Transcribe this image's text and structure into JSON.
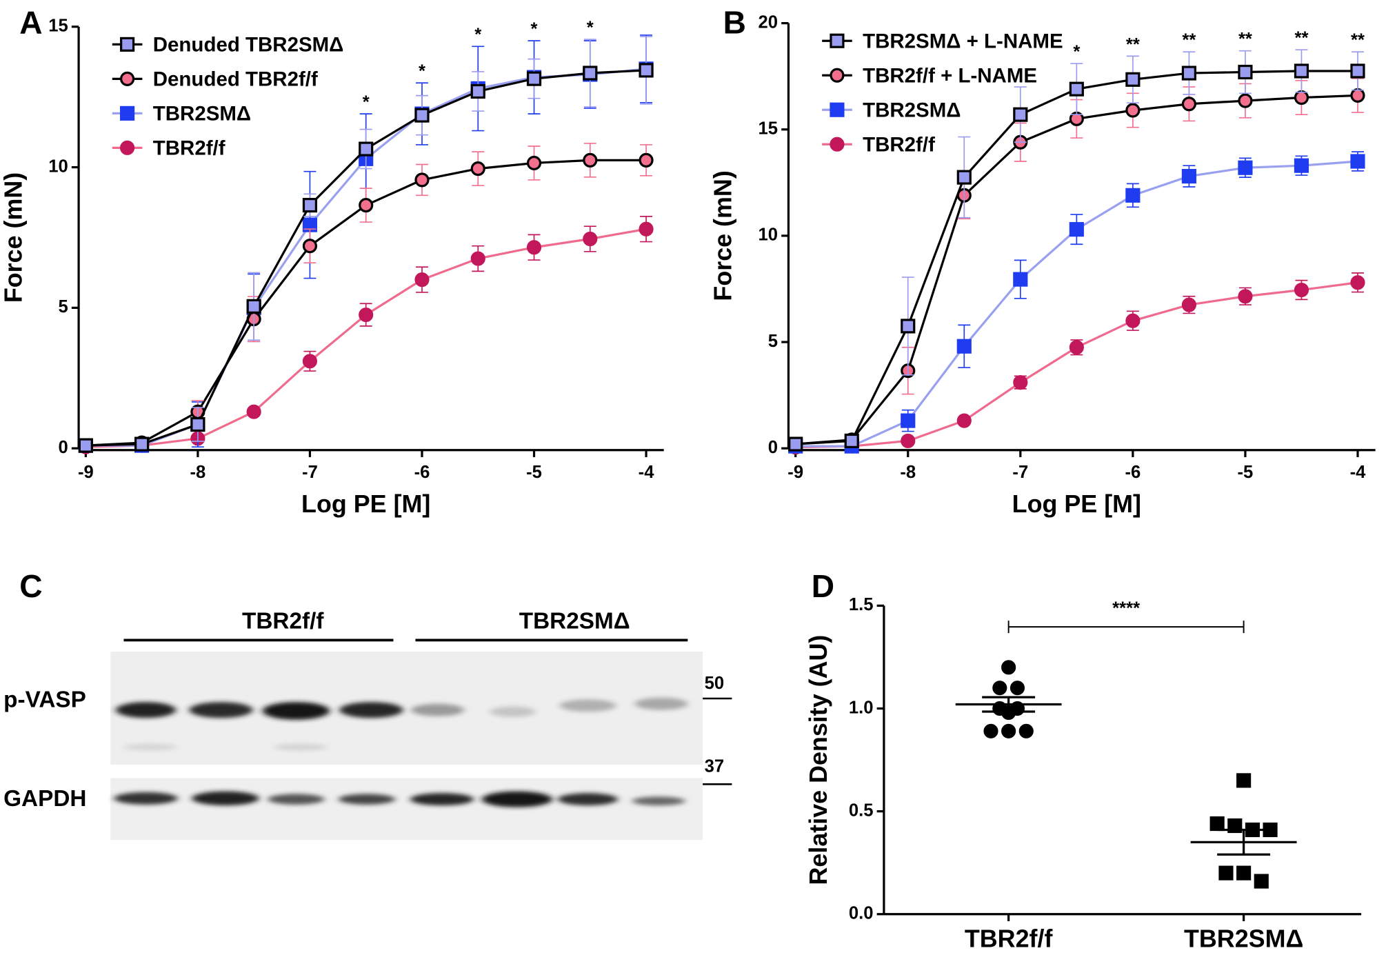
{
  "chart_data": [
    {
      "type": "line",
      "panel_label": "A",
      "xlabel": "Log PE [M]",
      "ylabel": "Force (mN)",
      "x": [
        -9,
        -8.5,
        -8,
        -7.5,
        -7,
        -6.5,
        -6,
        -5.5,
        -5,
        -4.5,
        -4
      ],
      "xlim": [
        -9,
        -4
      ],
      "xticks": [
        -9,
        -8,
        -7,
        -6,
        -5,
        -4
      ],
      "ylim": [
        0,
        15
      ],
      "yticks": [
        0,
        5,
        10,
        15
      ],
      "legend": "upper left",
      "series": [
        {
          "name": "Denuded TBR2SMΔ",
          "marker": "square",
          "color": "#9a9cf0",
          "line_color": "#000000",
          "edge_color": "#000000",
          "values": [
            0.1,
            0.15,
            0.85,
            5.05,
            8.65,
            10.65,
            11.85,
            12.7,
            13.15,
            13.35,
            13.45
          ],
          "errors": [
            0.05,
            0.1,
            0.6,
            1.2,
            0.4,
            0.7,
            0.7,
            0.7,
            0.7,
            1.2,
            1.2
          ]
        },
        {
          "name": "Denuded TBR2f/f",
          "marker": "circle",
          "color": "#f2708e",
          "line_color": "#000000",
          "edge_color": "#000000",
          "values": [
            0.1,
            0.2,
            1.3,
            4.6,
            7.2,
            8.65,
            9.55,
            9.95,
            10.15,
            10.25,
            10.25
          ],
          "errors": [
            0.05,
            0.1,
            0.4,
            0.8,
            0.6,
            0.6,
            0.55,
            0.6,
            0.6,
            0.6,
            0.55
          ]
        },
        {
          "name": "TBR2SMΔ",
          "marker": "square",
          "color": "#1f3cf0",
          "line_color": "#9aa0f0",
          "edge_color": "#1f3cf0",
          "values": [
            0.1,
            0.1,
            0.85,
            5.0,
            7.95,
            10.3,
            11.9,
            12.8,
            13.2,
            13.3,
            13.5
          ],
          "errors": [
            0.05,
            0.05,
            0.8,
            1.2,
            1.9,
            1.6,
            1.1,
            1.5,
            1.3,
            1.2,
            1.2
          ]
        },
        {
          "name": "TBR2f/f",
          "marker": "circle",
          "color": "#c2185b",
          "line_color": "#f06a8e",
          "edge_color": "#c2185b",
          "values": [
            0.05,
            0.1,
            0.35,
            1.3,
            3.1,
            4.75,
            6.0,
            6.75,
            7.15,
            7.45,
            7.8
          ],
          "errors": [
            0.02,
            0.05,
            0.1,
            0.1,
            0.35,
            0.4,
            0.45,
            0.45,
            0.45,
            0.45,
            0.45
          ]
        }
      ],
      "annotations": [
        {
          "text": "*",
          "x": -6.5
        },
        {
          "text": "*",
          "x": -6
        },
        {
          "text": "*",
          "x": -5.5
        },
        {
          "text": "*",
          "x": -5
        },
        {
          "text": "*",
          "x": -4.5
        }
      ]
    },
    {
      "type": "line",
      "panel_label": "B",
      "xlabel": "Log PE [M]",
      "ylabel": "Force (mN)",
      "x": [
        -9,
        -8.5,
        -8,
        -7.5,
        -7,
        -6.5,
        -6,
        -5.5,
        -5,
        -4.5,
        -4
      ],
      "xlim": [
        -9,
        -4
      ],
      "xticks": [
        -9,
        -8,
        -7,
        -6,
        -5,
        -4
      ],
      "ylim": [
        0,
        20
      ],
      "yticks": [
        0,
        5,
        10,
        15,
        20
      ],
      "legend": "upper left",
      "series": [
        {
          "name": "TBR2SMΔ + L-NAME",
          "marker": "square",
          "color": "#9a9cf0",
          "line_color": "#000000",
          "edge_color": "#000000",
          "values": [
            0.2,
            0.35,
            5.75,
            12.75,
            15.7,
            16.9,
            17.35,
            17.65,
            17.7,
            17.75,
            17.75
          ],
          "errors": [
            0.1,
            0.1,
            2.3,
            1.9,
            1.3,
            1.2,
            1.1,
            1.0,
            1.0,
            1.0,
            0.9
          ]
        },
        {
          "name": "TBR2f/f + L-NAME",
          "marker": "circle",
          "color": "#f2708e",
          "line_color": "#000000",
          "edge_color": "#000000",
          "values": [
            0.2,
            0.4,
            3.65,
            11.9,
            14.4,
            15.5,
            15.9,
            16.2,
            16.35,
            16.5,
            16.6
          ],
          "errors": [
            0.1,
            0.1,
            1.1,
            1.1,
            0.9,
            0.9,
            0.8,
            0.8,
            0.8,
            0.8,
            0.8
          ]
        },
        {
          "name": "TBR2SMΔ",
          "marker": "square",
          "color": "#1f3cf0",
          "line_color": "#9aa0f0",
          "edge_color": "#1f3cf0",
          "values": [
            0.1,
            0.1,
            1.3,
            4.8,
            7.95,
            10.3,
            11.9,
            12.8,
            13.2,
            13.3,
            13.5
          ],
          "errors": [
            0.05,
            0.05,
            0.5,
            1.0,
            0.9,
            0.7,
            0.55,
            0.5,
            0.45,
            0.45,
            0.45
          ]
        },
        {
          "name": "TBR2f/f",
          "marker": "circle",
          "color": "#c2185b",
          "line_color": "#f06a8e",
          "edge_color": "#c2185b",
          "values": [
            0.05,
            0.1,
            0.35,
            1.3,
            3.1,
            4.75,
            6.0,
            6.75,
            7.15,
            7.45,
            7.8
          ],
          "errors": [
            0.02,
            0.05,
            0.1,
            0.1,
            0.3,
            0.35,
            0.45,
            0.4,
            0.4,
            0.45,
            0.45
          ]
        }
      ],
      "annotations": [
        {
          "text": "*",
          "x": -6.5
        },
        {
          "text": "**",
          "x": -6
        },
        {
          "text": "**",
          "x": -5.5
        },
        {
          "text": "**",
          "x": -5
        },
        {
          "text": "**",
          "x": -4.5
        },
        {
          "text": "**",
          "x": -4
        }
      ]
    },
    {
      "type": "dot",
      "panel_label": "D",
      "ylabel": "Relative Density (AU)",
      "categories": [
        "TBR2f/f",
        "TBR2SMΔ"
      ],
      "markers": [
        "circle",
        "square"
      ],
      "color": "#000000",
      "values": [
        [
          1.2,
          1.1,
          1.1,
          1.0,
          1.0,
          0.98,
          0.89,
          0.89,
          0.89
        ],
        [
          0.65,
          0.44,
          0.43,
          0.41,
          0.41,
          0.2,
          0.2,
          0.16
        ]
      ],
      "means": [
        1.02,
        0.35
      ],
      "errors": [
        0.035,
        0.06
      ],
      "ylim": [
        0,
        1.5
      ],
      "yticks": [
        {
          "value": 0,
          "label": "0.0"
        },
        0.5,
        {
          "value": 1,
          "label": "1.0"
        },
        1.5
      ],
      "significance": "****"
    }
  ],
  "blot": {
    "panel_label": "C",
    "groups": [
      "TBR2f/f",
      "TBR2SMΔ"
    ],
    "rows": [
      "p-VASP",
      "GAPDH"
    ],
    "size_markers": [
      "50",
      "37"
    ]
  }
}
